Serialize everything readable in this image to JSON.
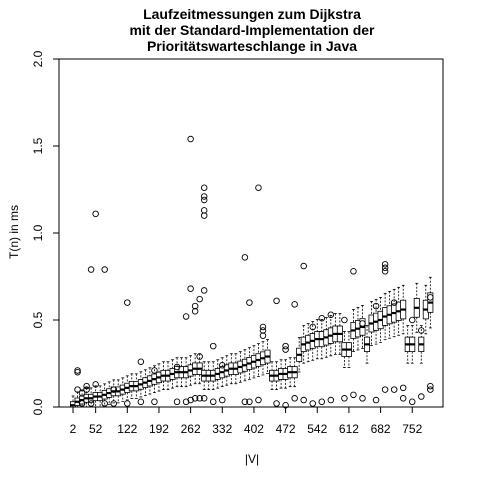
{
  "chart_data": {
    "type": "boxplot",
    "title": [
      "Laufzeitmessungen zum Dijkstra",
      "mit der Standard-Implementation der",
      "Prioritätswarteschlange in Java"
    ],
    "xlabel": "|V|",
    "ylabel": "T(n) in ms",
    "ylim": [
      0,
      2.0
    ],
    "yticks": [
      "0.0",
      "0.5",
      "1.0",
      "1.5",
      "2.0"
    ],
    "x_values": [
      2,
      12,
      22,
      32,
      42,
      52,
      62,
      72,
      82,
      92,
      102,
      112,
      122,
      132,
      142,
      152,
      162,
      172,
      182,
      192,
      202,
      212,
      222,
      232,
      242,
      252,
      262,
      272,
      282,
      292,
      302,
      312,
      322,
      332,
      342,
      352,
      362,
      372,
      382,
      392,
      402,
      412,
      422,
      432,
      442,
      452,
      462,
      472,
      482,
      492,
      502,
      512,
      522,
      532,
      542,
      552,
      562,
      572,
      582,
      592,
      602,
      612,
      622,
      632,
      642,
      652,
      662,
      672,
      682,
      692,
      702,
      712,
      722,
      732,
      742,
      752,
      762,
      772,
      782,
      792
    ],
    "xtick_labels": [
      "2",
      "52",
      "122",
      "192",
      "262",
      "332",
      "402",
      "472",
      "542",
      "612",
      "682",
      "752"
    ],
    "medians": [
      0.01,
      0.03,
      0.04,
      0.05,
      0.05,
      0.06,
      0.06,
      0.07,
      0.08,
      0.09,
      0.09,
      0.1,
      0.11,
      0.12,
      0.12,
      0.13,
      0.14,
      0.15,
      0.16,
      0.17,
      0.18,
      0.18,
      0.19,
      0.2,
      0.2,
      0.2,
      0.21,
      0.22,
      0.22,
      0.18,
      0.18,
      0.18,
      0.19,
      0.2,
      0.21,
      0.22,
      0.22,
      0.23,
      0.24,
      0.25,
      0.26,
      0.27,
      0.28,
      0.29,
      0.18,
      0.18,
      0.19,
      0.19,
      0.2,
      0.2,
      0.3,
      0.36,
      0.37,
      0.38,
      0.39,
      0.39,
      0.4,
      0.41,
      0.42,
      0.42,
      0.33,
      0.33,
      0.44,
      0.45,
      0.46,
      0.36,
      0.48,
      0.49,
      0.5,
      0.52,
      0.53,
      0.54,
      0.55,
      0.56,
      0.36,
      0.36,
      0.57,
      0.36,
      0.56,
      0.6
    ],
    "outliers": [
      {
        "x": 12,
        "y": [
          0.1,
          0.2,
          0.21
        ]
      },
      {
        "x": 22,
        "y": [
          0.02,
          0.08
        ]
      },
      {
        "x": 32,
        "y": [
          0.12,
          0.1
        ]
      },
      {
        "x": 42,
        "y": [
          0.79,
          0.02
        ]
      },
      {
        "x": 52,
        "y": [
          1.11,
          0.13
        ]
      },
      {
        "x": 72,
        "y": [
          0.79,
          0.02
        ]
      },
      {
        "x": 92,
        "y": [
          0.1,
          0.02
        ]
      },
      {
        "x": 122,
        "y": [
          0.6,
          0.02
        ]
      },
      {
        "x": 152,
        "y": [
          0.26,
          0.03
        ]
      },
      {
        "x": 182,
        "y": [
          0.21,
          0.03
        ]
      },
      {
        "x": 232,
        "y": [
          0.23,
          0.03
        ]
      },
      {
        "x": 252,
        "y": [
          0.52,
          0.03
        ]
      },
      {
        "x": 262,
        "y": [
          1.54,
          0.68,
          0.04
        ]
      },
      {
        "x": 272,
        "y": [
          0.55,
          0.58,
          0.05
        ]
      },
      {
        "x": 282,
        "y": [
          0.62,
          0.29,
          0.05
        ]
      },
      {
        "x": 292,
        "y": [
          0.67,
          1.26,
          1.21,
          1.19,
          1.13,
          1.1,
          0.05
        ]
      },
      {
        "x": 312,
        "y": [
          0.35,
          0.03
        ]
      },
      {
        "x": 332,
        "y": [
          0.24,
          0.04
        ]
      },
      {
        "x": 382,
        "y": [
          0.86,
          0.03
        ]
      },
      {
        "x": 392,
        "y": [
          0.6,
          0.03
        ]
      },
      {
        "x": 412,
        "y": [
          1.26,
          0.04
        ]
      },
      {
        "x": 422,
        "y": [
          0.44,
          0.41,
          0.46
        ]
      },
      {
        "x": 452,
        "y": [
          0.61,
          0.02
        ]
      },
      {
        "x": 472,
        "y": [
          0.35,
          0.33,
          0.01
        ]
      },
      {
        "x": 492,
        "y": [
          0.59,
          0.05
        ]
      },
      {
        "x": 512,
        "y": [
          0.81,
          0.04
        ]
      },
      {
        "x": 532,
        "y": [
          0.46,
          0.02
        ]
      },
      {
        "x": 552,
        "y": [
          0.51,
          0.03
        ]
      },
      {
        "x": 572,
        "y": [
          0.53,
          0.04
        ]
      },
      {
        "x": 602,
        "y": [
          0.5,
          0.05
        ]
      },
      {
        "x": 622,
        "y": [
          0.78,
          0.07
        ]
      },
      {
        "x": 642,
        "y": [
          0.48,
          0.05
        ]
      },
      {
        "x": 672,
        "y": [
          0.58,
          0.04
        ]
      },
      {
        "x": 692,
        "y": [
          0.82,
          0.8,
          0.78,
          0.1
        ]
      },
      {
        "x": 712,
        "y": [
          0.6,
          0.1
        ]
      },
      {
        "x": 732,
        "y": [
          0.11,
          0.05
        ]
      },
      {
        "x": 752,
        "y": [
          0.5,
          0.03
        ]
      },
      {
        "x": 772,
        "y": [
          0.44,
          0.06
        ]
      },
      {
        "x": 792,
        "y": [
          0.63,
          0.12,
          0.1
        ]
      }
    ],
    "grid": false
  }
}
